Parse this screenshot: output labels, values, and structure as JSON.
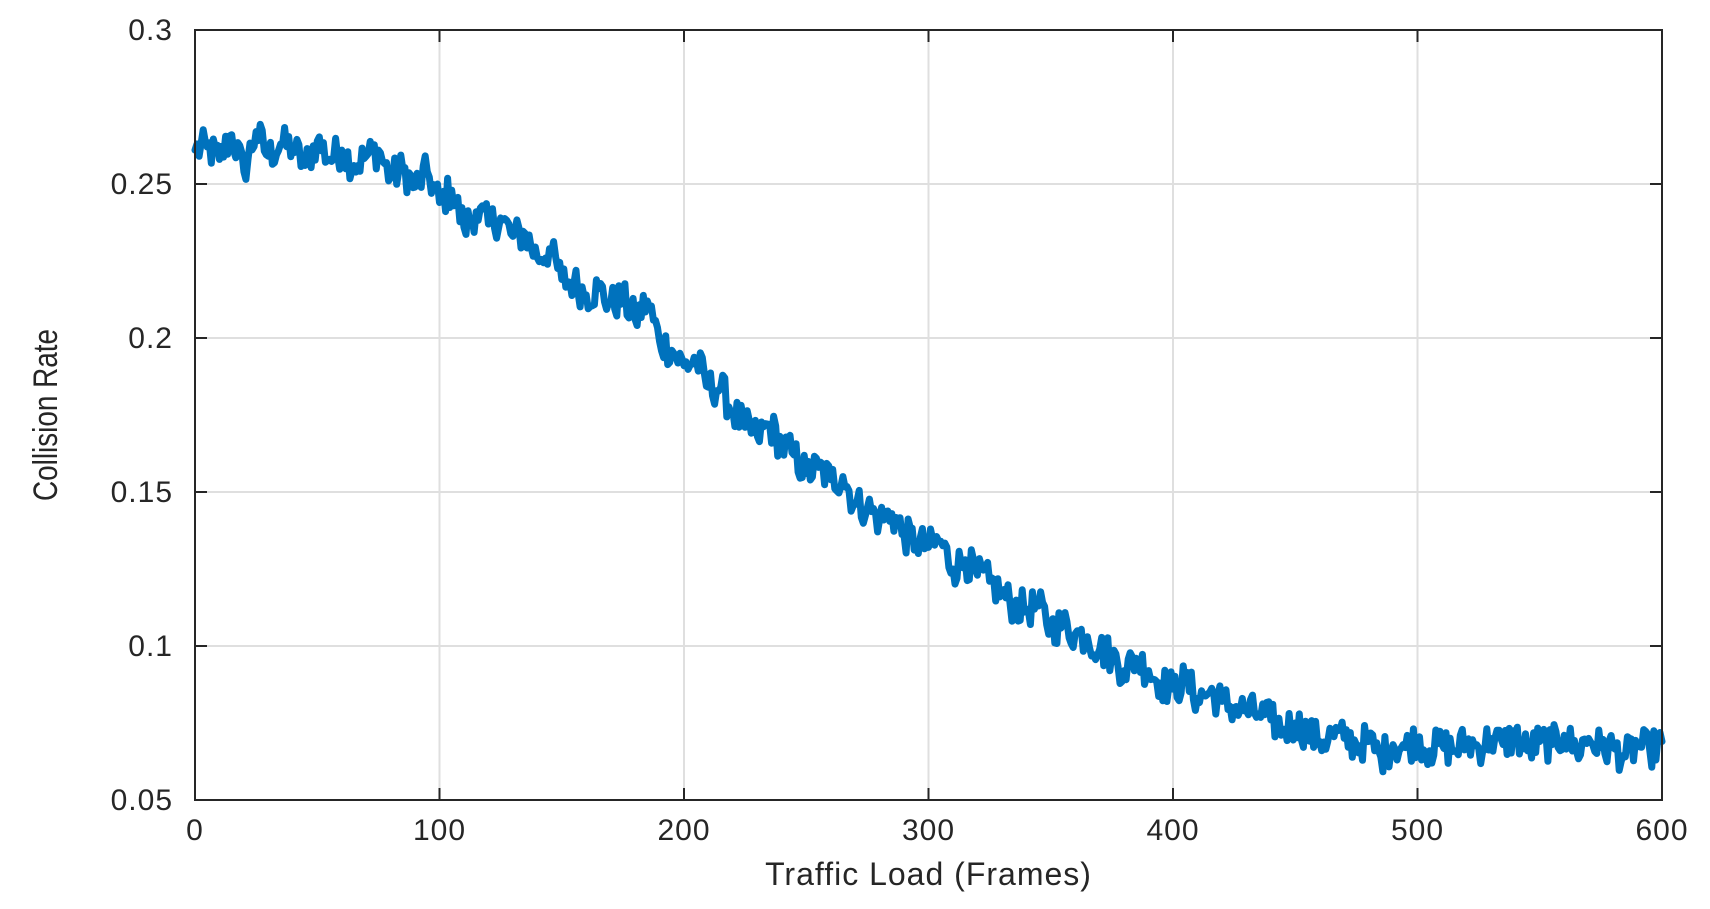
{
  "chart_data": {
    "type": "line",
    "title": "",
    "xlabel": "Traffic Load (Frames)",
    "ylabel": "Collision Rate",
    "xlim": [
      0,
      600
    ],
    "ylim": [
      0.05,
      0.3
    ],
    "xticks": [
      0,
      100,
      200,
      300,
      400,
      500,
      600
    ],
    "xtick_labels": [
      "0",
      "100",
      "200",
      "300",
      "400",
      "500",
      "600"
    ],
    "yticks": [
      0.05,
      0.1,
      0.15,
      0.2,
      0.25,
      0.3
    ],
    "ytick_labels": [
      "0.05",
      "0.1",
      "0.15",
      "0.2",
      "0.25",
      "0.3"
    ],
    "grid": true,
    "legend": "none",
    "series": [
      {
        "color": "#0072BD",
        "x": [
          0,
          5,
          10,
          15,
          20,
          25,
          30,
          35,
          40,
          45,
          50,
          55,
          60,
          65,
          70,
          75,
          80,
          85,
          90,
          95,
          100,
          105,
          110,
          115,
          120,
          125,
          130,
          135,
          140,
          145,
          150,
          155,
          160,
          165,
          170,
          175,
          180,
          185,
          190,
          195,
          200,
          205,
          210,
          215,
          220,
          225,
          230,
          235,
          240,
          245,
          250,
          255,
          260,
          265,
          270,
          275,
          280,
          285,
          290,
          295,
          300,
          305,
          310,
          315,
          320,
          325,
          330,
          335,
          340,
          345,
          350,
          355,
          360,
          365,
          370,
          375,
          380,
          385,
          390,
          395,
          400,
          405,
          410,
          415,
          420,
          425,
          430,
          435,
          440,
          445,
          450,
          455,
          460,
          465,
          470,
          475,
          480,
          485,
          490,
          495,
          500,
          505,
          510,
          515,
          520,
          525,
          530,
          535,
          540,
          545,
          550,
          555,
          560,
          565,
          570,
          575,
          580,
          585,
          590,
          595,
          600
        ],
        "y": [
          0.261,
          0.262,
          0.258,
          0.266,
          0.254,
          0.267,
          0.259,
          0.263,
          0.262,
          0.256,
          0.264,
          0.258,
          0.261,
          0.256,
          0.259,
          0.261,
          0.252,
          0.255,
          0.249,
          0.254,
          0.244,
          0.248,
          0.236,
          0.241,
          0.237,
          0.239,
          0.233,
          0.234,
          0.226,
          0.229,
          0.219,
          0.218,
          0.214,
          0.216,
          0.211,
          0.213,
          0.206,
          0.212,
          0.199,
          0.196,
          0.191,
          0.193,
          0.184,
          0.184,
          0.176,
          0.171,
          0.168,
          0.172,
          0.165,
          0.162,
          0.156,
          0.158,
          0.154,
          0.155,
          0.146,
          0.145,
          0.141,
          0.143,
          0.136,
          0.134,
          0.132,
          0.134,
          0.125,
          0.128,
          0.123,
          0.121,
          0.117,
          0.113,
          0.112,
          0.113,
          0.106,
          0.107,
          0.104,
          0.103,
          0.099,
          0.097,
          0.092,
          0.096,
          0.092,
          0.088,
          0.086,
          0.089,
          0.083,
          0.085,
          0.082,
          0.08,
          0.079,
          0.078,
          0.076,
          0.073,
          0.075,
          0.072,
          0.069,
          0.071,
          0.07,
          0.068,
          0.069,
          0.064,
          0.068,
          0.067,
          0.07,
          0.066,
          0.068,
          0.066,
          0.069,
          0.067,
          0.07,
          0.068,
          0.071,
          0.066,
          0.069,
          0.068,
          0.071,
          0.066,
          0.07,
          0.067,
          0.067,
          0.064,
          0.068,
          0.066,
          0.069
        ]
      }
    ]
  }
}
